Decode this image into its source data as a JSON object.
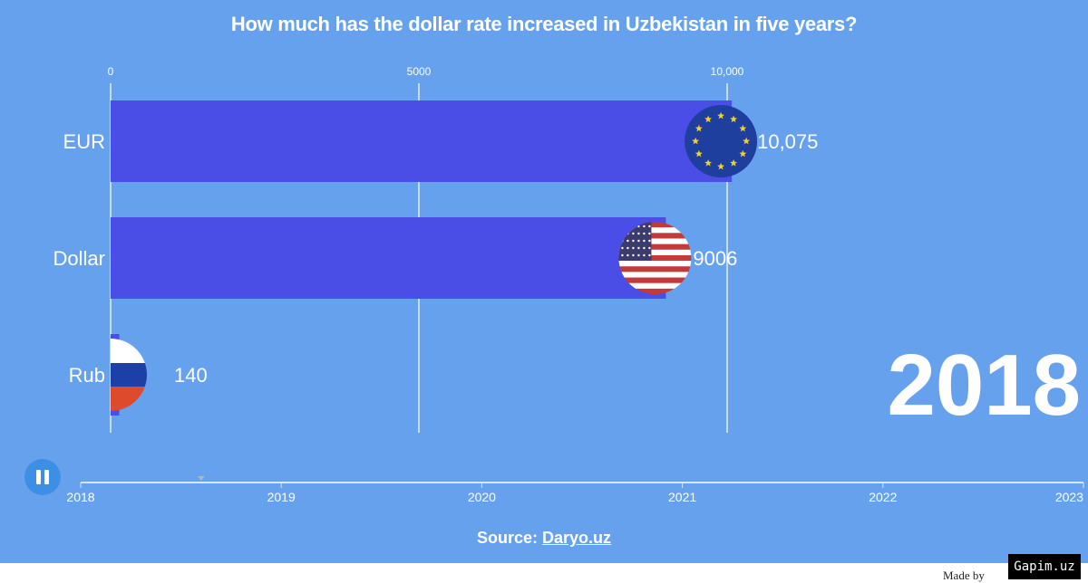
{
  "chart_data": {
    "type": "bar",
    "orientation": "horizontal",
    "title": "How much has the dollar rate increased in Uzbekistan in five years?",
    "categories": [
      "EUR",
      "Dollar",
      "Rub"
    ],
    "values": [
      10075,
      9006,
      140
    ],
    "value_labels": [
      "10,075",
      "9006",
      "140"
    ],
    "icons": [
      "eu-flag-icon",
      "us-flag-icon",
      "russia-flag-icon"
    ],
    "xlim": [
      0,
      10000
    ],
    "xticks": [
      0,
      5000,
      10000
    ],
    "xtick_labels": [
      "0",
      "5000",
      "10,000"
    ],
    "grid": true,
    "bar_color": "#4a4de6",
    "background_color": "#66a1ee",
    "current_period": "2018"
  },
  "timeline": {
    "labels": [
      "2018",
      "2019",
      "2020",
      "2021",
      "2022",
      "2023"
    ],
    "position": 2018.6,
    "pause_label": "pause"
  },
  "source": {
    "prefix": "Source: ",
    "link": "Daryo.uz"
  },
  "footer": {
    "made_by": "Made by",
    "watermark": "Gapim.uz"
  }
}
